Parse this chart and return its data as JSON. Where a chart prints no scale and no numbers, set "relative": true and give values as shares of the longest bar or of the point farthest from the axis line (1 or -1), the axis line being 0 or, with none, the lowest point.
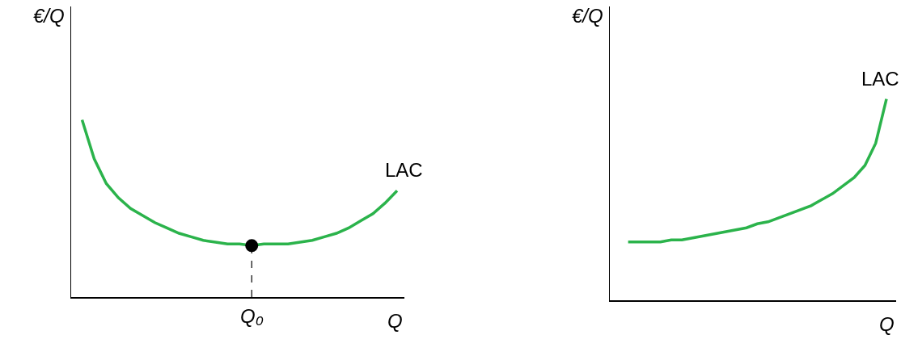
{
  "chart_data": [
    {
      "type": "line",
      "relative": true,
      "xlabel": "Q",
      "ylabel": "€/Q",
      "legend": false,
      "marker": "none",
      "line_style": "solid",
      "categories": [
        null,
        null,
        null,
        null,
        null,
        null,
        null,
        null,
        null,
        null,
        null,
        null,
        null,
        null,
        null,
        null,
        null,
        null,
        null,
        null,
        null,
        null,
        null,
        null,
        null,
        null,
        null
      ],
      "annotations": [
        {
          "text": "Q₀",
          "y": 0.29
        }
      ],
      "series": [
        {
          "name": "LAC",
          "color": "#2bb34b",
          "values": [
            1.0,
            0.78,
            0.64,
            0.56,
            0.5,
            0.46,
            0.42,
            0.39,
            0.36,
            0.34,
            0.32,
            0.31,
            0.3,
            0.3,
            0.29,
            0.3,
            0.3,
            0.3,
            0.31,
            0.32,
            0.34,
            0.36,
            0.39,
            0.43,
            0.47,
            0.53,
            0.6
          ]
        }
      ]
    },
    {
      "type": "line",
      "relative": true,
      "xlabel": "Q",
      "ylabel": "€/Q",
      "legend": false,
      "marker": "none",
      "line_style": "solid",
      "categories": [
        null,
        null,
        null,
        null,
        null,
        null,
        null,
        null,
        null,
        null,
        null,
        null,
        null,
        null,
        null,
        null,
        null,
        null,
        null,
        null,
        null,
        null,
        null,
        null,
        null
      ],
      "series": [
        {
          "name": "LAC",
          "color": "#2bb34b",
          "values": [
            0.29,
            0.29,
            0.29,
            0.29,
            0.3,
            0.3,
            0.31,
            0.32,
            0.33,
            0.34,
            0.35,
            0.36,
            0.38,
            0.39,
            0.41,
            0.43,
            0.45,
            0.47,
            0.5,
            0.53,
            0.57,
            0.61,
            0.67,
            0.78,
            1.0
          ]
        }
      ]
    }
  ]
}
